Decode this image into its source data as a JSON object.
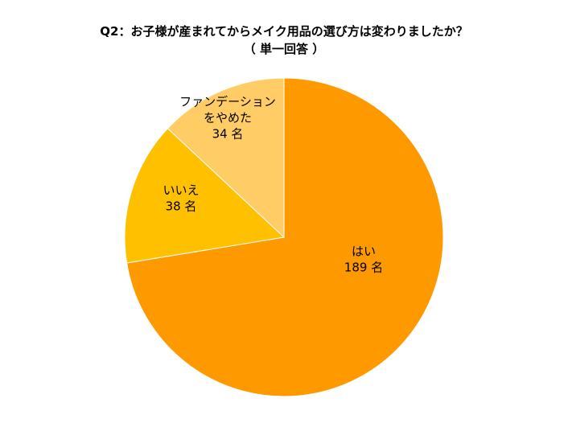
{
  "title_lines": [
    "Q2：お子様が産まれてからメイク用品の選び方は変わりましたか？",
    "（ 単一回答 ）"
  ],
  "chart_data": {
    "type": "pie",
    "start_angle_deg": 0,
    "direction": "clockwise",
    "slices": [
      {
        "label_lines": [
          "はい"
        ],
        "value": 189,
        "value_text": "189 名",
        "color": "#FF9900"
      },
      {
        "label_lines": [
          "いいえ"
        ],
        "value": 38,
        "value_text": "38 名",
        "color": "#FFC000"
      },
      {
        "label_lines": [
          "ファンデーション",
          "をやめた"
        ],
        "value": 34,
        "value_text": "34 名",
        "color": "#FFCC66"
      }
    ],
    "legend": "none"
  },
  "colors": {
    "slice_border": "#ffffff",
    "background": "#ffffff"
  }
}
